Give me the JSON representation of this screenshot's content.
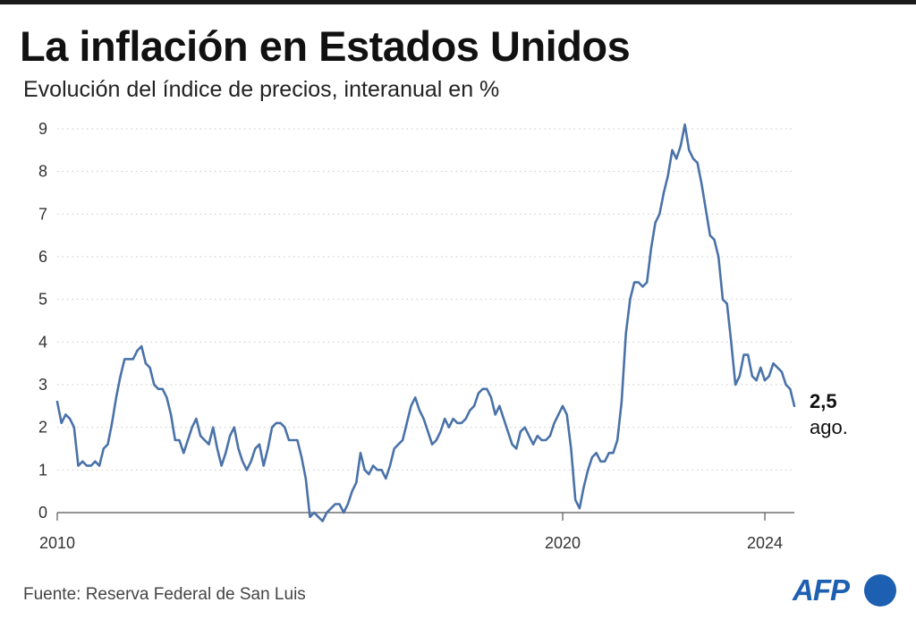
{
  "header": {
    "title": "La inflación en Estados Unidos",
    "subtitle": "Evolución del índice de precios, interanual en %"
  },
  "footer": {
    "source": "Fuente: Reserva Federal de San Luis",
    "logo_text": "AFP"
  },
  "colors": {
    "line": "#4a72a8",
    "grid": "#c8c8c8",
    "axis": "#555555",
    "logo": "#1d5fb0"
  },
  "chart_data": {
    "type": "line",
    "title": "La inflación en Estados Unidos",
    "subtitle": "Evolución del índice de precios, interanual en %",
    "xlabel": "",
    "ylabel": "",
    "ylim": [
      0,
      9
    ],
    "xlim": [
      "2010-01",
      "2024-08"
    ],
    "y_ticks": [
      "0",
      "1",
      "2",
      "3",
      "4",
      "5",
      "6",
      "7",
      "8",
      "9"
    ],
    "x_tick_labels": [
      "2010",
      "2020",
      "2024"
    ],
    "x_ticks": [
      "2010-01",
      "2020-01",
      "2024-01"
    ],
    "grid": "horizontal dotted",
    "end_annotation": {
      "value": "2,5",
      "label": "ago."
    },
    "series": [
      {
        "x": [
          "2010-01",
          "2010-02",
          "2010-03",
          "2010-04",
          "2010-05",
          "2010-06",
          "2010-07",
          "2010-08",
          "2010-09",
          "2010-10",
          "2010-11",
          "2010-12",
          "2011-01",
          "2011-02",
          "2011-03",
          "2011-04",
          "2011-05",
          "2011-06",
          "2011-07",
          "2011-08",
          "2011-09",
          "2011-10",
          "2011-11",
          "2011-12",
          "2012-01",
          "2012-02",
          "2012-03",
          "2012-04",
          "2012-05",
          "2012-06",
          "2012-07",
          "2012-08",
          "2012-09",
          "2012-10",
          "2012-11",
          "2012-12",
          "2013-01",
          "2013-02",
          "2013-03",
          "2013-04",
          "2013-05",
          "2013-06",
          "2013-07",
          "2013-08",
          "2013-09",
          "2013-10",
          "2013-11",
          "2013-12",
          "2014-01",
          "2014-02",
          "2014-03",
          "2014-04",
          "2014-05",
          "2014-06",
          "2014-07",
          "2014-08",
          "2014-09",
          "2014-10",
          "2014-11",
          "2014-12",
          "2015-01",
          "2015-02",
          "2015-03",
          "2015-04",
          "2015-05",
          "2015-06",
          "2015-07",
          "2015-08",
          "2015-09",
          "2015-10",
          "2015-11",
          "2015-12",
          "2016-01",
          "2016-02",
          "2016-03",
          "2016-04",
          "2016-05",
          "2016-06",
          "2016-07",
          "2016-08",
          "2016-09",
          "2016-10",
          "2016-11",
          "2016-12",
          "2017-01",
          "2017-02",
          "2017-03",
          "2017-04",
          "2017-05",
          "2017-06",
          "2017-07",
          "2017-08",
          "2017-09",
          "2017-10",
          "2017-11",
          "2017-12",
          "2018-01",
          "2018-02",
          "2018-03",
          "2018-04",
          "2018-05",
          "2018-06",
          "2018-07",
          "2018-08",
          "2018-09",
          "2018-10",
          "2018-11",
          "2018-12",
          "2019-01",
          "2019-02",
          "2019-03",
          "2019-04",
          "2019-05",
          "2019-06",
          "2019-07",
          "2019-08",
          "2019-09",
          "2019-10",
          "2019-11",
          "2019-12",
          "2020-01",
          "2020-02",
          "2020-03",
          "2020-04",
          "2020-05",
          "2020-06",
          "2020-07",
          "2020-08",
          "2020-09",
          "2020-10",
          "2020-11",
          "2020-12",
          "2021-01",
          "2021-02",
          "2021-03",
          "2021-04",
          "2021-05",
          "2021-06",
          "2021-07",
          "2021-08",
          "2021-09",
          "2021-10",
          "2021-11",
          "2021-12",
          "2022-01",
          "2022-02",
          "2022-03",
          "2022-04",
          "2022-05",
          "2022-06",
          "2022-07",
          "2022-08",
          "2022-09",
          "2022-10",
          "2022-11",
          "2022-12",
          "2023-01",
          "2023-02",
          "2023-03",
          "2023-04",
          "2023-05",
          "2023-06",
          "2023-07",
          "2023-08",
          "2023-09",
          "2023-10",
          "2023-11",
          "2023-12",
          "2024-01",
          "2024-02",
          "2024-03",
          "2024-04",
          "2024-05",
          "2024-06",
          "2024-07",
          "2024-08"
        ],
        "values": [
          2.6,
          2.1,
          2.3,
          2.2,
          2.0,
          1.1,
          1.2,
          1.1,
          1.1,
          1.2,
          1.1,
          1.5,
          1.6,
          2.1,
          2.7,
          3.2,
          3.6,
          3.6,
          3.6,
          3.8,
          3.9,
          3.5,
          3.4,
          3.0,
          2.9,
          2.9,
          2.7,
          2.3,
          1.7,
          1.7,
          1.4,
          1.7,
          2.0,
          2.2,
          1.8,
          1.7,
          1.6,
          2.0,
          1.5,
          1.1,
          1.4,
          1.8,
          2.0,
          1.5,
          1.2,
          1.0,
          1.2,
          1.5,
          1.6,
          1.1,
          1.5,
          2.0,
          2.1,
          2.1,
          2.0,
          1.7,
          1.7,
          1.7,
          1.3,
          0.8,
          -0.1,
          0.0,
          -0.1,
          -0.2,
          0.0,
          0.1,
          0.2,
          0.2,
          0.0,
          0.2,
          0.5,
          0.7,
          1.4,
          1.0,
          0.9,
          1.1,
          1.0,
          1.0,
          0.8,
          1.1,
          1.5,
          1.6,
          1.7,
          2.1,
          2.5,
          2.7,
          2.4,
          2.2,
          1.9,
          1.6,
          1.7,
          1.9,
          2.2,
          2.0,
          2.2,
          2.1,
          2.1,
          2.2,
          2.4,
          2.5,
          2.8,
          2.9,
          2.9,
          2.7,
          2.3,
          2.5,
          2.2,
          1.9,
          1.6,
          1.5,
          1.9,
          2.0,
          1.8,
          1.6,
          1.8,
          1.7,
          1.7,
          1.8,
          2.1,
          2.3,
          2.5,
          2.3,
          1.5,
          0.3,
          0.1,
          0.6,
          1.0,
          1.3,
          1.4,
          1.2,
          1.2,
          1.4,
          1.4,
          1.7,
          2.6,
          4.2,
          5.0,
          5.4,
          5.4,
          5.3,
          5.4,
          6.2,
          6.8,
          7.0,
          7.5,
          7.9,
          8.5,
          8.3,
          8.6,
          9.1,
          8.5,
          8.3,
          8.2,
          7.7,
          7.1,
          6.5,
          6.4,
          6.0,
          5.0,
          4.9,
          4.0,
          3.0,
          3.2,
          3.7,
          3.7,
          3.2,
          3.1,
          3.4,
          3.1,
          3.2,
          3.5,
          3.4,
          3.3,
          3.0,
          2.9,
          2.5
        ]
      }
    ]
  }
}
